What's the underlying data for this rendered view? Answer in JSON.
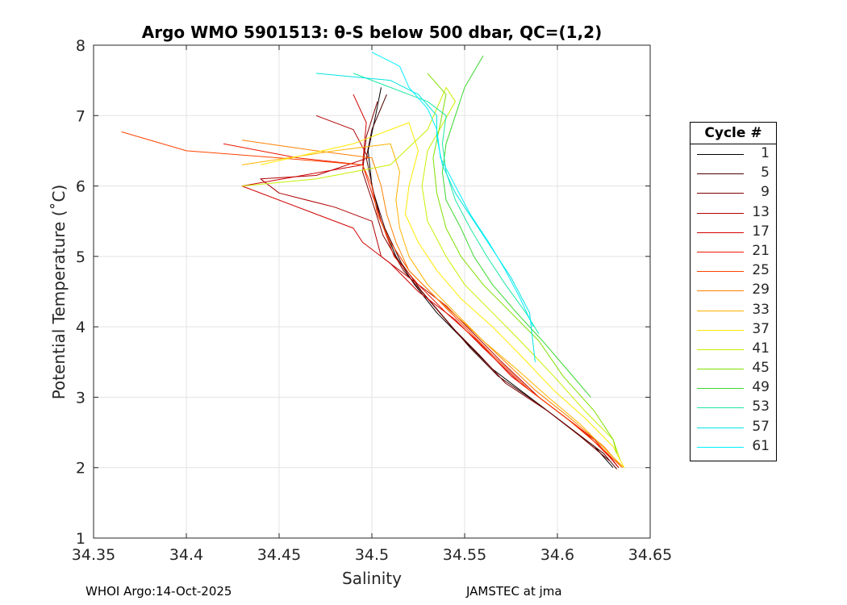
{
  "chart_data": {
    "type": "line",
    "title": "Argo WMO 5901513: θ-S below 500 dbar,  QC=(1,2)",
    "xlabel": "Salinity",
    "ylabel": "Potential Temperature (˚C)",
    "xlim": [
      34.35,
      34.65
    ],
    "ylim": [
      1,
      8
    ],
    "xticks": [
      "34.35",
      "34.4",
      "34.45",
      "34.5",
      "34.55",
      "34.6",
      "34.65"
    ],
    "yticks": [
      "1",
      "2",
      "3",
      "4",
      "5",
      "6",
      "7",
      "8"
    ],
    "grid": true,
    "legend_title": "Cycle #",
    "legend_position": "right",
    "legend": [
      {
        "label": "1",
        "color": "#000000"
      },
      {
        "label": "5",
        "color": "#4a0000"
      },
      {
        "label": "9",
        "color": "#7d0000"
      },
      {
        "label": "13",
        "color": "#b00000"
      },
      {
        "label": "17",
        "color": "#d20000"
      },
      {
        "label": "21",
        "color": "#ee1800"
      },
      {
        "label": "25",
        "color": "#ff4400"
      },
      {
        "label": "29",
        "color": "#ff8000"
      },
      {
        "label": "33",
        "color": "#ffb300"
      },
      {
        "label": "37",
        "color": "#ffea00"
      },
      {
        "label": "41",
        "color": "#c7f000"
      },
      {
        "label": "45",
        "color": "#7fe000"
      },
      {
        "label": "49",
        "color": "#3ad830"
      },
      {
        "label": "53",
        "color": "#1de8a0"
      },
      {
        "label": "57",
        "color": "#00e5e0"
      },
      {
        "label": "61",
        "color": "#00f0ff"
      }
    ],
    "series": [
      {
        "name": "1",
        "color": "#000000",
        "points": [
          [
            34.505,
            7.4
          ],
          [
            34.502,
            7.0
          ],
          [
            34.498,
            6.5
          ],
          [
            34.5,
            6.0
          ],
          [
            34.505,
            5.5
          ],
          [
            34.513,
            5.0
          ],
          [
            34.523,
            4.6
          ],
          [
            34.535,
            4.2
          ],
          [
            34.55,
            3.8
          ],
          [
            34.565,
            3.4
          ],
          [
            34.585,
            3.0
          ],
          [
            34.605,
            2.6
          ],
          [
            34.62,
            2.3
          ],
          [
            34.63,
            2.0
          ]
        ]
      },
      {
        "name": "5",
        "color": "#4a0000",
        "points": [
          [
            34.508,
            7.3
          ],
          [
            34.5,
            6.8
          ],
          [
            34.497,
            6.4
          ],
          [
            34.501,
            5.9
          ],
          [
            34.507,
            5.4
          ],
          [
            34.516,
            4.9
          ],
          [
            34.527,
            4.5
          ],
          [
            34.54,
            4.1
          ],
          [
            34.553,
            3.7
          ],
          [
            34.568,
            3.3
          ],
          [
            34.59,
            2.9
          ],
          [
            34.61,
            2.5
          ],
          [
            34.625,
            2.2
          ],
          [
            34.632,
            1.98
          ]
        ]
      },
      {
        "name": "9",
        "color": "#7d0000",
        "points": [
          [
            34.503,
            7.2
          ],
          [
            34.497,
            6.7
          ],
          [
            34.495,
            6.2
          ],
          [
            34.5,
            5.8
          ],
          [
            34.506,
            5.3
          ],
          [
            34.517,
            4.8
          ],
          [
            34.53,
            4.4
          ],
          [
            34.543,
            4.0
          ],
          [
            34.558,
            3.6
          ],
          [
            34.572,
            3.2
          ],
          [
            34.595,
            2.8
          ],
          [
            34.612,
            2.45
          ],
          [
            34.628,
            2.1
          ]
        ]
      },
      {
        "name": "13",
        "color": "#b00000",
        "points": [
          [
            34.47,
            7.0
          ],
          [
            34.49,
            6.8
          ],
          [
            34.498,
            6.4
          ],
          [
            34.47,
            6.15
          ],
          [
            34.44,
            6.1
          ],
          [
            34.45,
            5.9
          ],
          [
            34.48,
            5.7
          ],
          [
            34.5,
            5.5
          ],
          [
            34.505,
            5.0
          ],
          [
            34.52,
            4.7
          ],
          [
            34.54,
            4.3
          ],
          [
            34.555,
            3.9
          ],
          [
            34.57,
            3.5
          ],
          [
            34.59,
            3.0
          ],
          [
            34.61,
            2.6
          ],
          [
            34.627,
            2.2
          ],
          [
            34.633,
            2.0
          ]
        ]
      },
      {
        "name": "17",
        "color": "#d20000",
        "points": [
          [
            34.49,
            7.3
          ],
          [
            34.497,
            6.9
          ],
          [
            34.495,
            6.3
          ],
          [
            34.43,
            6.0
          ],
          [
            34.47,
            5.6
          ],
          [
            34.49,
            5.4
          ],
          [
            34.495,
            5.2
          ],
          [
            34.51,
            4.9
          ],
          [
            34.525,
            4.5
          ],
          [
            34.545,
            4.1
          ],
          [
            34.56,
            3.7
          ],
          [
            34.58,
            3.2
          ],
          [
            34.6,
            2.8
          ],
          [
            34.62,
            2.4
          ],
          [
            34.633,
            2.0
          ]
        ]
      },
      {
        "name": "21",
        "color": "#ee1800",
        "points": [
          [
            34.42,
            6.6
          ],
          [
            34.46,
            6.4
          ],
          [
            34.495,
            6.3
          ],
          [
            34.5,
            5.9
          ],
          [
            34.505,
            5.5
          ],
          [
            34.512,
            5.0
          ],
          [
            34.525,
            4.6
          ],
          [
            34.54,
            4.2
          ],
          [
            34.557,
            3.8
          ],
          [
            34.575,
            3.3
          ],
          [
            34.595,
            2.9
          ],
          [
            34.615,
            2.5
          ],
          [
            34.63,
            2.1
          ]
        ]
      },
      {
        "name": "25",
        "color": "#ff4400",
        "points": [
          [
            34.365,
            6.77
          ],
          [
            34.4,
            6.5
          ],
          [
            34.45,
            6.4
          ],
          [
            34.495,
            6.3
          ],
          [
            34.5,
            6.0
          ],
          [
            34.503,
            5.6
          ],
          [
            34.51,
            5.2
          ],
          [
            34.52,
            4.8
          ],
          [
            34.535,
            4.4
          ],
          [
            34.55,
            4.0
          ],
          [
            34.565,
            3.6
          ],
          [
            34.585,
            3.1
          ],
          [
            34.605,
            2.7
          ],
          [
            34.623,
            2.3
          ],
          [
            34.635,
            2.0
          ]
        ]
      },
      {
        "name": "29",
        "color": "#ff8000",
        "points": [
          [
            34.43,
            6.65
          ],
          [
            34.47,
            6.5
          ],
          [
            34.5,
            6.4
          ],
          [
            34.505,
            6.0
          ],
          [
            34.508,
            5.6
          ],
          [
            34.513,
            5.2
          ],
          [
            34.52,
            4.8
          ],
          [
            34.535,
            4.4
          ],
          [
            34.552,
            4.0
          ],
          [
            34.568,
            3.6
          ],
          [
            34.588,
            3.1
          ],
          [
            34.607,
            2.7
          ],
          [
            34.625,
            2.3
          ],
          [
            34.635,
            2.0
          ]
        ]
      },
      {
        "name": "33",
        "color": "#ffb300",
        "points": [
          [
            34.43,
            6.3
          ],
          [
            34.48,
            6.5
          ],
          [
            34.51,
            6.6
          ],
          [
            34.515,
            6.2
          ],
          [
            34.513,
            5.8
          ],
          [
            34.515,
            5.4
          ],
          [
            34.52,
            5.0
          ],
          [
            34.53,
            4.6
          ],
          [
            34.545,
            4.2
          ],
          [
            34.56,
            3.8
          ],
          [
            34.578,
            3.4
          ],
          [
            34.595,
            3.0
          ],
          [
            34.613,
            2.6
          ],
          [
            34.628,
            2.2
          ],
          [
            34.636,
            2.0
          ]
        ]
      },
      {
        "name": "37",
        "color": "#ffea00",
        "points": [
          [
            34.44,
            6.3
          ],
          [
            34.49,
            6.6
          ],
          [
            34.52,
            6.9
          ],
          [
            34.525,
            6.5
          ],
          [
            34.52,
            6.0
          ],
          [
            34.518,
            5.6
          ],
          [
            34.525,
            5.2
          ],
          [
            34.535,
            4.8
          ],
          [
            34.548,
            4.4
          ],
          [
            34.565,
            4.0
          ],
          [
            34.58,
            3.6
          ],
          [
            34.598,
            3.1
          ],
          [
            34.615,
            2.7
          ],
          [
            34.63,
            2.3
          ],
          [
            34.636,
            2.0
          ]
        ]
      },
      {
        "name": "41",
        "color": "#c7f000",
        "points": [
          [
            34.43,
            6.0
          ],
          [
            34.47,
            6.1
          ],
          [
            34.51,
            6.3
          ],
          [
            34.53,
            6.8
          ],
          [
            34.54,
            7.4
          ],
          [
            34.545,
            7.2
          ],
          [
            34.53,
            6.5
          ],
          [
            34.527,
            6.0
          ],
          [
            34.53,
            5.5
          ],
          [
            34.54,
            5.0
          ],
          [
            34.55,
            4.6
          ],
          [
            34.565,
            4.2
          ],
          [
            34.58,
            3.8
          ],
          [
            34.598,
            3.3
          ],
          [
            34.615,
            2.8
          ],
          [
            34.63,
            2.4
          ],
          [
            34.634,
            2.1
          ]
        ]
      },
      {
        "name": "45",
        "color": "#7fe000",
        "points": [
          [
            34.53,
            7.6
          ],
          [
            34.54,
            7.3
          ],
          [
            34.537,
            6.9
          ],
          [
            34.533,
            6.4
          ],
          [
            34.535,
            5.9
          ],
          [
            34.54,
            5.4
          ],
          [
            34.548,
            5.0
          ],
          [
            34.56,
            4.6
          ],
          [
            34.575,
            4.2
          ],
          [
            34.59,
            3.8
          ],
          [
            34.603,
            3.3
          ],
          [
            34.62,
            2.8
          ],
          [
            34.63,
            2.4
          ],
          [
            34.632,
            2.2
          ]
        ]
      },
      {
        "name": "49",
        "color": "#3ad830",
        "points": [
          [
            34.56,
            7.85
          ],
          [
            34.55,
            7.4
          ],
          [
            34.545,
            7.0
          ],
          [
            34.54,
            6.6
          ],
          [
            34.538,
            6.2
          ],
          [
            34.54,
            5.8
          ],
          [
            34.548,
            5.4
          ],
          [
            34.555,
            5.0
          ],
          [
            34.565,
            4.6
          ],
          [
            34.578,
            4.2
          ],
          [
            34.592,
            3.8
          ],
          [
            34.605,
            3.4
          ],
          [
            34.618,
            3.0
          ]
        ]
      },
      {
        "name": "53",
        "color": "#1de8a0",
        "points": [
          [
            34.49,
            7.6
          ],
          [
            34.51,
            7.4
          ],
          [
            34.53,
            7.2
          ],
          [
            34.54,
            7.0
          ],
          [
            34.538,
            6.6
          ],
          [
            34.54,
            6.2
          ],
          [
            34.545,
            5.8
          ],
          [
            34.553,
            5.4
          ],
          [
            34.562,
            5.0
          ],
          [
            34.572,
            4.6
          ],
          [
            34.583,
            4.2
          ],
          [
            34.59,
            3.9
          ]
        ]
      },
      {
        "name": "57",
        "color": "#00e5e0",
        "points": [
          [
            34.47,
            7.6
          ],
          [
            34.51,
            7.5
          ],
          [
            34.525,
            7.3
          ],
          [
            34.535,
            7.0
          ],
          [
            34.535,
            6.7
          ],
          [
            34.538,
            6.3
          ],
          [
            34.545,
            5.9
          ],
          [
            34.555,
            5.5
          ],
          [
            34.565,
            5.1
          ],
          [
            34.575,
            4.7
          ],
          [
            34.585,
            4.2
          ],
          [
            34.588,
            3.5
          ]
        ]
      },
      {
        "name": "61",
        "color": "#00f0ff",
        "points": [
          [
            34.5,
            7.9
          ],
          [
            34.515,
            7.7
          ],
          [
            34.52,
            7.4
          ],
          [
            34.53,
            7.1
          ],
          [
            34.535,
            6.8
          ],
          [
            34.537,
            6.4
          ],
          [
            34.545,
            6.0
          ],
          [
            34.553,
            5.6
          ],
          [
            34.563,
            5.2
          ],
          [
            34.572,
            4.8
          ],
          [
            34.58,
            4.4
          ],
          [
            34.587,
            4.0
          ]
        ]
      }
    ]
  },
  "footer": {
    "left": "WHOI Argo:14-Oct-2025",
    "right": "JAMSTEC at jma"
  }
}
